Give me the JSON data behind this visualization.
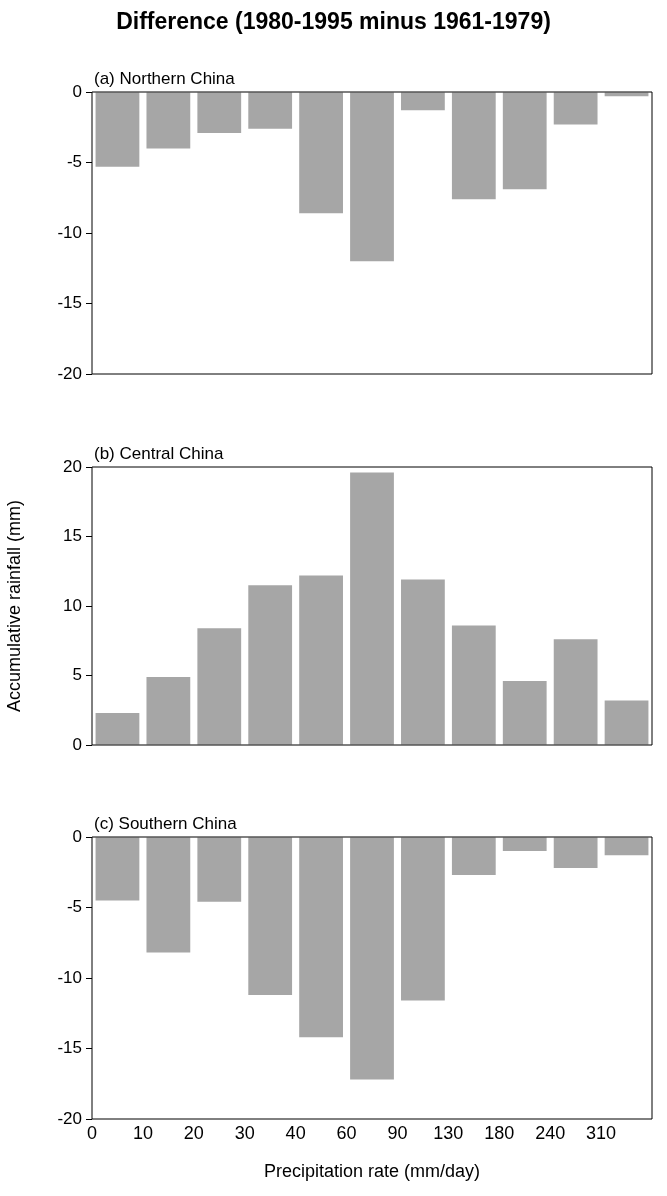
{
  "chart_data": [
    {
      "type": "bar",
      "title": "Difference (1980-1995 minus 1961-1979)",
      "annotations": [
        "(a) Northern China"
      ],
      "categories": [
        "0",
        "10",
        "20",
        "30",
        "40",
        "60",
        "90",
        "130",
        "180",
        "240",
        "310"
      ],
      "values": [
        -5.3,
        -4.0,
        -2.9,
        -2.6,
        -8.6,
        -12.0,
        -1.3,
        -7.6,
        -6.9,
        -2.3,
        -0.3
      ],
      "color": "#a6a6a6",
      "ylim": [
        -20,
        0
      ],
      "yticks": [
        -20,
        -15,
        -10,
        -5,
        0
      ],
      "grid": false,
      "tick_labels": "y"
    },
    {
      "type": "bar",
      "annotations": [
        "(b) Central China"
      ],
      "ylabel": "Accumulative rainfall (mm)",
      "categories": [
        "0",
        "10",
        "20",
        "30",
        "40",
        "60",
        "90",
        "130",
        "180",
        "240",
        "310"
      ],
      "values": [
        2.3,
        4.9,
        8.4,
        11.5,
        12.2,
        19.6,
        11.9,
        8.6,
        4.6,
        7.6,
        3.2
      ],
      "color": "#a6a6a6",
      "ylim": [
        0,
        20
      ],
      "yticks": [
        0,
        5,
        10,
        15,
        20
      ],
      "grid": false,
      "tick_labels": "y"
    },
    {
      "type": "bar",
      "annotations": [
        "(c) Southern China"
      ],
      "xlabel": "Precipitation rate (mm/day)",
      "categories": [
        "0",
        "10",
        "20",
        "30",
        "40",
        "60",
        "90",
        "130",
        "180",
        "240",
        "310"
      ],
      "values": [
        -4.5,
        -8.2,
        -4.6,
        -11.2,
        -14.2,
        -17.2,
        -11.6,
        -2.7,
        -1.0,
        -2.2,
        -1.3
      ],
      "color": "#a6a6a6",
      "ylim": [
        -20,
        0
      ],
      "yticks": [
        -20,
        -15,
        -10,
        -5,
        0
      ],
      "grid": false
    }
  ]
}
